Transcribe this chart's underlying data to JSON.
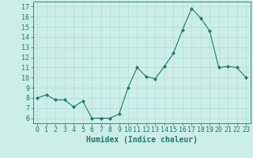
{
  "x": [
    0,
    1,
    2,
    3,
    4,
    5,
    6,
    7,
    8,
    9,
    10,
    11,
    12,
    13,
    14,
    15,
    16,
    17,
    18,
    19,
    20,
    21,
    22,
    23
  ],
  "y": [
    8.0,
    8.3,
    7.8,
    7.8,
    7.1,
    7.7,
    6.0,
    6.0,
    6.0,
    6.4,
    9.0,
    11.0,
    10.1,
    9.9,
    11.1,
    12.4,
    14.7,
    16.8,
    15.9,
    14.6,
    11.0,
    11.1,
    11.0,
    10.0
  ],
  "line_color": "#1a7a6e",
  "marker": "D",
  "marker_size": 2,
  "bg_color": "#cceee8",
  "grid_color": "#aadddd",
  "xlabel": "Humidex (Indice chaleur)",
  "ylim": [
    5.5,
    17.5
  ],
  "xlim": [
    -0.5,
    23.5
  ],
  "yticks": [
    6,
    7,
    8,
    9,
    10,
    11,
    12,
    13,
    14,
    15,
    16,
    17
  ],
  "xticks": [
    0,
    1,
    2,
    3,
    4,
    5,
    6,
    7,
    8,
    9,
    10,
    11,
    12,
    13,
    14,
    15,
    16,
    17,
    18,
    19,
    20,
    21,
    22,
    23
  ],
  "tick_color": "#1a7a6e",
  "label_color": "#1a7a6e",
  "font_size": 6,
  "xlabel_fontsize": 7
}
